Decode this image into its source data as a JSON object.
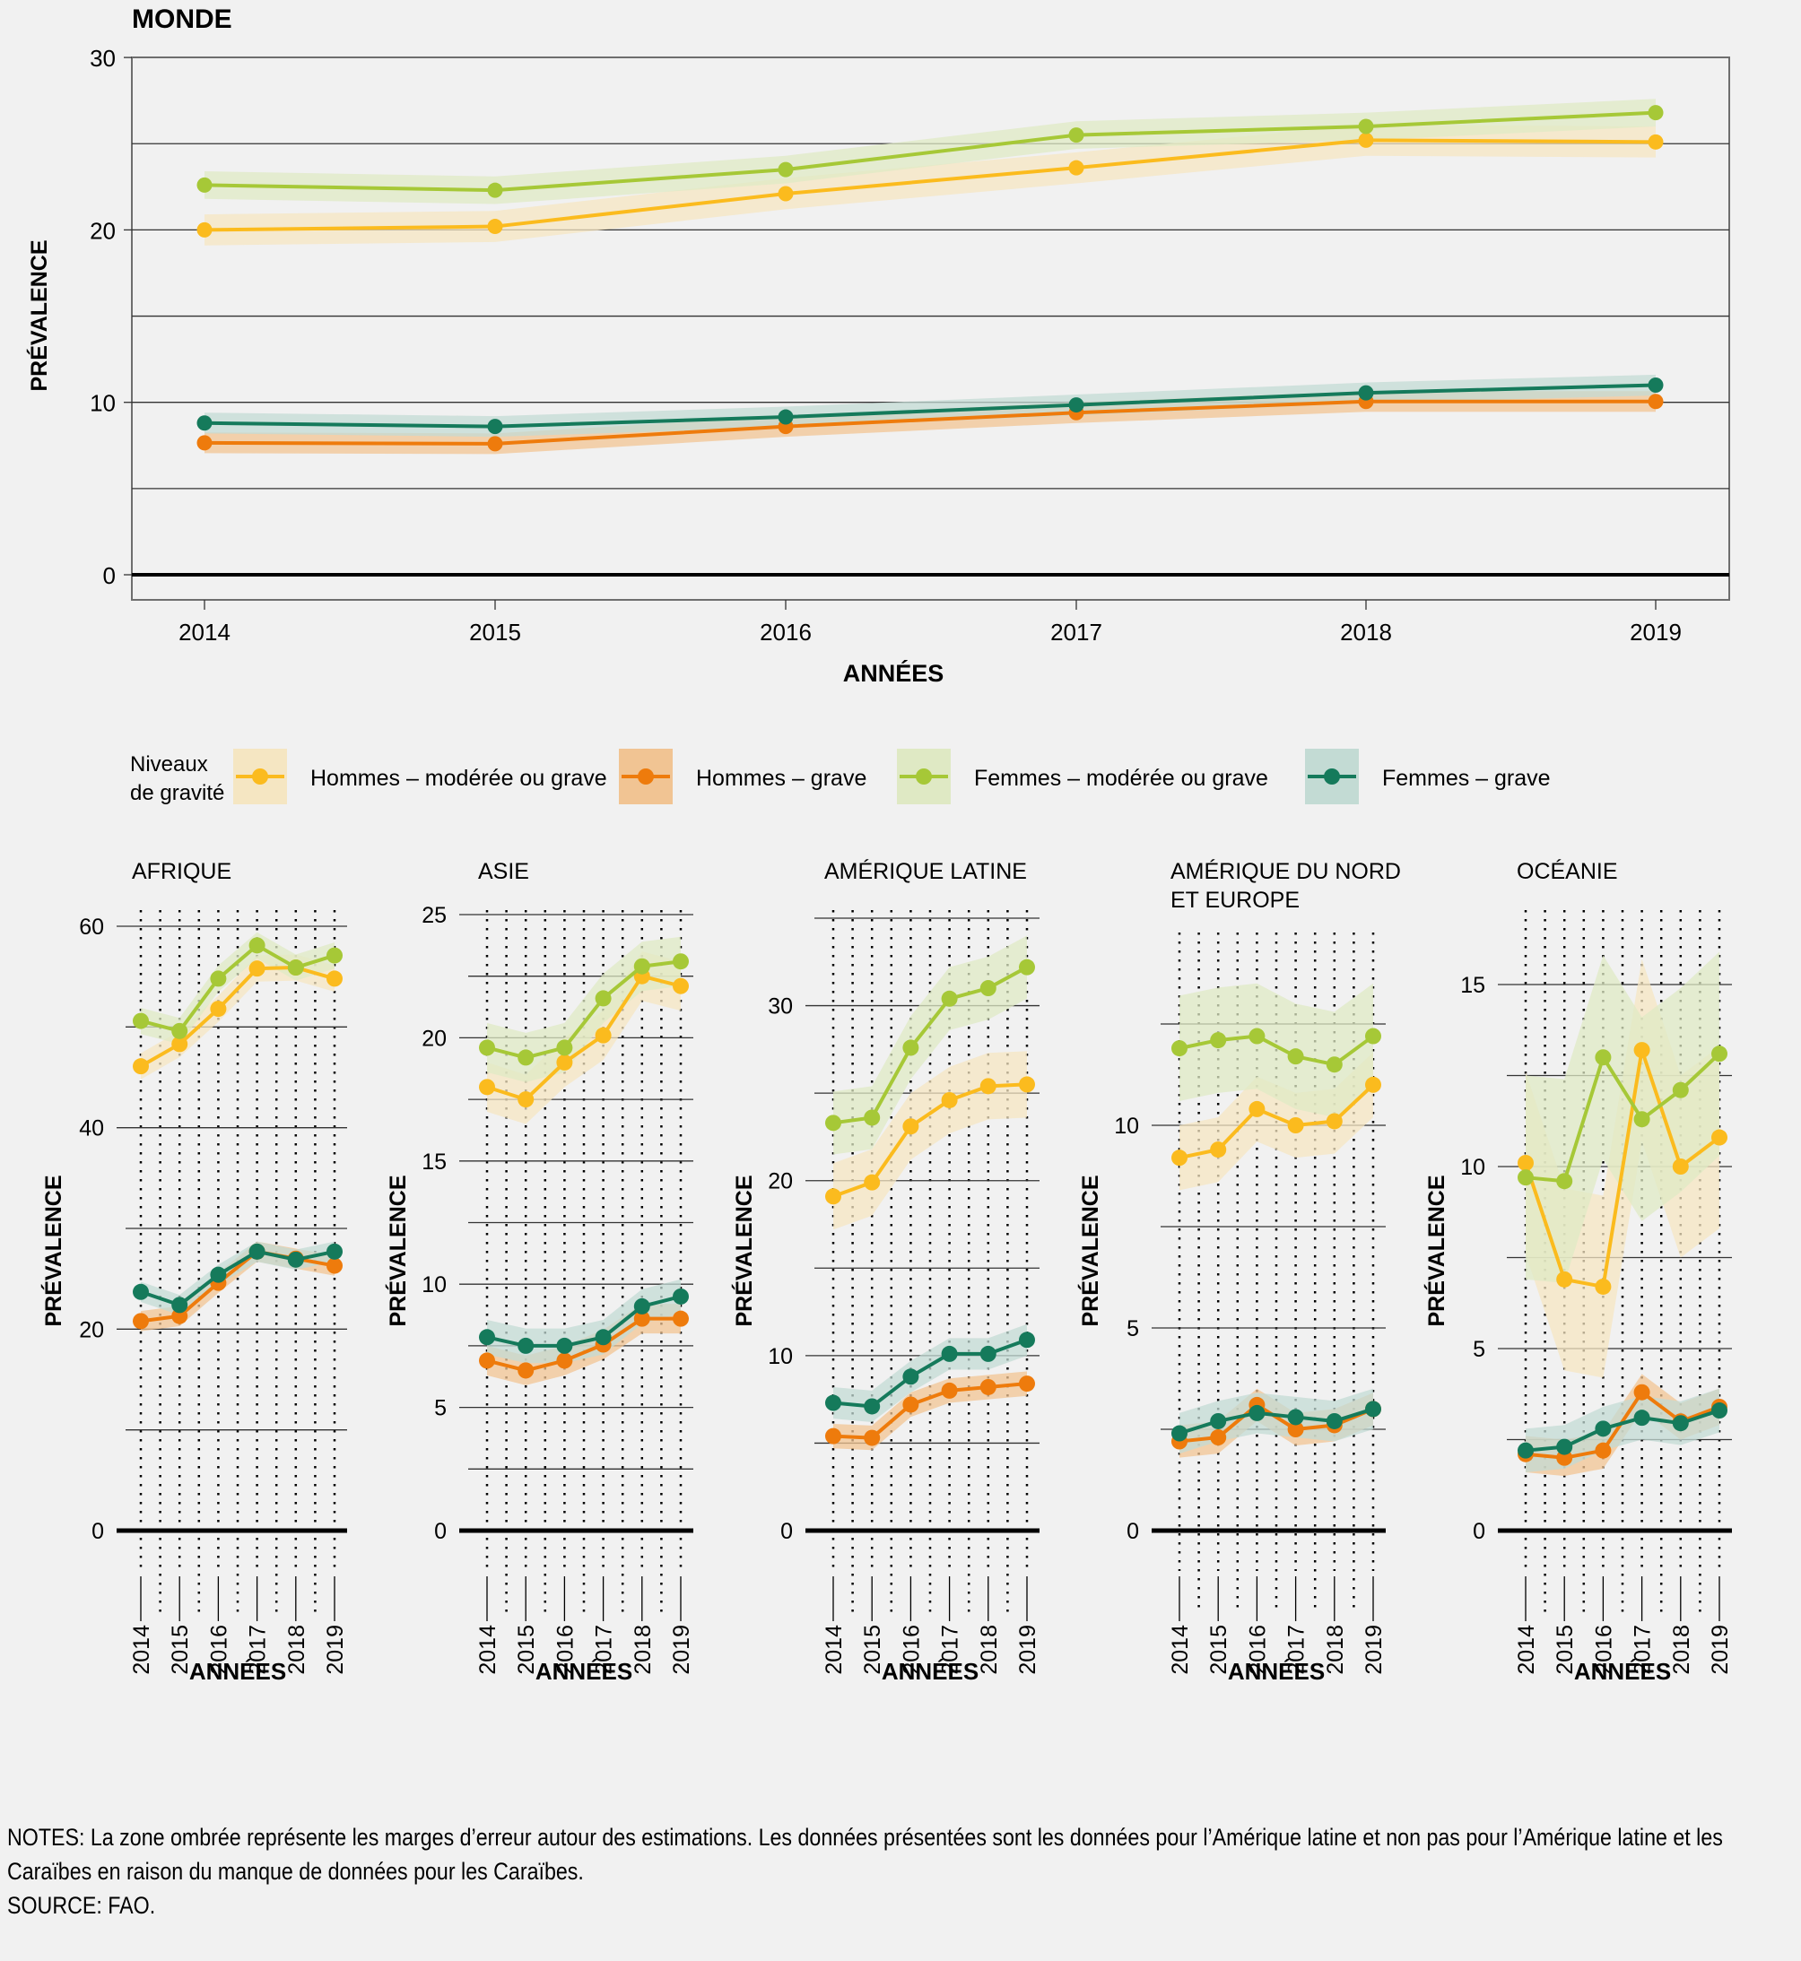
{
  "chart_data": [
    {
      "id": "world",
      "type": "line",
      "title": "MONDE",
      "xlabel": "ANNÉES",
      "ylabel": "PRÉVALENCE",
      "x": [
        2014,
        2015,
        2016,
        2017,
        2018,
        2019
      ],
      "ylim": [
        0,
        30
      ],
      "yticks": [
        0,
        10,
        20,
        30
      ],
      "ygrid": [
        5,
        10,
        15,
        20,
        25
      ],
      "grid": true,
      "series": [
        {
          "key": "f_mod",
          "name": "Femmes – modérée ou grave",
          "values": [
            22.6,
            22.3,
            23.5,
            25.5,
            26.0,
            26.8
          ],
          "err": 0.8
        },
        {
          "key": "h_mod",
          "name": "Hommes – modérée ou grave",
          "values": [
            20.0,
            20.2,
            22.1,
            23.6,
            25.2,
            25.1
          ],
          "err": 0.9
        },
        {
          "key": "f_grave",
          "name": "Femmes – grave",
          "values": [
            8.8,
            8.6,
            9.15,
            9.85,
            10.55,
            11.0
          ],
          "err": 0.6
        },
        {
          "key": "h_grave",
          "name": "Hommes – grave",
          "values": [
            7.65,
            7.6,
            8.6,
            9.4,
            10.05,
            10.05
          ],
          "err": 0.6
        }
      ]
    },
    {
      "id": "afrique",
      "type": "line",
      "title": "AFRIQUE",
      "title_line2": "",
      "xlabel": "ANNÉES",
      "ylabel": "PRÉVALENCE",
      "x": [
        2014,
        2015,
        2016,
        2017,
        2018,
        2019
      ],
      "ylim": [
        0,
        60
      ],
      "yticks": [
        0,
        20,
        40,
        60
      ],
      "ygrid": [
        10,
        20,
        30,
        40,
        50,
        60
      ],
      "series": [
        {
          "key": "f_mod",
          "values": [
            50.6,
            49.6,
            54.8,
            58.1,
            55.9,
            57.1
          ],
          "err": 1.3
        },
        {
          "key": "h_mod",
          "values": [
            46.1,
            48.3,
            51.8,
            55.8,
            55.9,
            54.8
          ],
          "err": 1.3
        },
        {
          "key": "f_grave",
          "values": [
            23.7,
            22.4,
            25.4,
            27.7,
            26.9,
            27.7
          ],
          "err": 1.0
        },
        {
          "key": "h_grave",
          "values": [
            20.8,
            21.3,
            24.6,
            27.7,
            27.0,
            26.3
          ],
          "err": 1.0
        }
      ]
    },
    {
      "id": "asie",
      "type": "line",
      "title": "ASIE",
      "title_line2": "",
      "xlabel": "ANNÉES",
      "ylabel": "PRÉVALENCE",
      "x": [
        2014,
        2015,
        2016,
        2017,
        2018,
        2019
      ],
      "ylim": [
        0,
        25
      ],
      "yticks": [
        0,
        5,
        10,
        15,
        20,
        25
      ],
      "ygrid": [
        2.5,
        5,
        7.5,
        10,
        12.5,
        15,
        17.5,
        20,
        22.5,
        25
      ],
      "series": [
        {
          "key": "f_mod",
          "values": [
            19.6,
            19.2,
            19.6,
            21.6,
            22.9,
            23.1
          ],
          "err": 1.0
        },
        {
          "key": "h_mod",
          "values": [
            18.0,
            17.5,
            19.0,
            20.1,
            22.5,
            22.1
          ],
          "err": 1.0
        },
        {
          "key": "f_grave",
          "values": [
            7.85,
            7.5,
            7.5,
            7.85,
            9.1,
            9.5
          ],
          "err": 0.7
        },
        {
          "key": "h_grave",
          "values": [
            6.9,
            6.5,
            6.9,
            7.55,
            8.6,
            8.6
          ],
          "err": 0.6
        }
      ]
    },
    {
      "id": "amerique-latine",
      "type": "line",
      "title": "AMÉRIQUE LATINE",
      "title_line2": "",
      "xlabel": "ANNÉES",
      "ylabel": "PRÉVALENCE",
      "x": [
        2014,
        2015,
        2016,
        2017,
        2018,
        2019
      ],
      "ylim": [
        0,
        35
      ],
      "yticks": [
        0,
        10,
        20,
        30
      ],
      "ygrid": [
        5,
        10,
        15,
        20,
        25,
        30,
        35
      ],
      "series": [
        {
          "key": "f_mod",
          "values": [
            23.3,
            23.6,
            27.6,
            30.4,
            31.0,
            32.2
          ],
          "err": 1.8
        },
        {
          "key": "h_mod",
          "values": [
            19.1,
            19.9,
            23.1,
            24.6,
            25.4,
            25.5
          ],
          "err": 1.9
        },
        {
          "key": "f_grave",
          "values": [
            7.3,
            7.1,
            8.8,
            10.1,
            10.1,
            10.9
          ],
          "err": 0.9
        },
        {
          "key": "h_grave",
          "values": [
            5.4,
            5.3,
            7.2,
            8.0,
            8.2,
            8.4
          ],
          "err": 0.7
        }
      ]
    },
    {
      "id": "amerique-nord-europe",
      "type": "line",
      "title": "AMÉRIQUE DU NORD",
      "title_line2": "ET EUROPE",
      "xlabel": "ANNÉES",
      "ylabel": "PRÉVALENCE",
      "x": [
        2014,
        2015,
        2016,
        2017,
        2018,
        2019
      ],
      "ylim": [
        0,
        12.5
      ],
      "yticks": [
        0,
        5,
        10
      ],
      "ygrid": [
        2.5,
        5,
        7.5,
        10,
        12.5
      ],
      "series": [
        {
          "key": "f_mod",
          "values": [
            11.9,
            12.1,
            12.2,
            11.7,
            11.5,
            12.2
          ],
          "err": 1.3
        },
        {
          "key": "h_mod",
          "values": [
            9.2,
            9.4,
            10.4,
            10.0,
            10.1,
            11.0
          ],
          "err": 0.8
        },
        {
          "key": "f_grave",
          "values": [
            2.4,
            2.7,
            2.9,
            2.8,
            2.7,
            3.0
          ],
          "err": 0.5
        },
        {
          "key": "h_grave",
          "values": [
            2.2,
            2.3,
            3.1,
            2.5,
            2.6,
            3.0
          ],
          "err": 0.4
        }
      ]
    },
    {
      "id": "oceanie",
      "type": "line",
      "title": "OCÉANIE",
      "title_line2": "",
      "xlabel": "ANNÉES",
      "ylabel": "PRÉVALENCE",
      "x": [
        2014,
        2015,
        2016,
        2017,
        2018,
        2019
      ],
      "ylim": [
        0,
        15
      ],
      "yticks": [
        0,
        5,
        10,
        15
      ],
      "ygrid": [
        2.5,
        5,
        7.5,
        10,
        12.5,
        15
      ],
      "series": [
        {
          "key": "f_mod",
          "values": [
            9.7,
            9.6,
            13.0,
            11.3,
            12.1,
            13.1
          ],
          "err": 2.8
        },
        {
          "key": "h_mod",
          "values": [
            10.1,
            6.9,
            6.7,
            13.2,
            10.0,
            10.8
          ],
          "err": 2.5
        },
        {
          "key": "f_grave",
          "values": [
            2.2,
            2.3,
            2.8,
            3.1,
            2.95,
            3.3
          ],
          "err": 0.6
        },
        {
          "key": "h_grave",
          "values": [
            2.1,
            2.0,
            2.2,
            3.8,
            3.0,
            3.4
          ],
          "err": 0.5
        }
      ]
    }
  ],
  "colors": {
    "h_mod": "#fbbb1e",
    "h_mod_band": "#f5e6c2",
    "h_grave": "#ee7b0c",
    "h_grave_band": "#f1c493",
    "f_mod": "#a6c837",
    "f_mod_band": "#dfe9c4",
    "f_grave": "#157a5b",
    "f_grave_band": "#c3dbd4"
  },
  "legend": {
    "title_line1": "Niveaux",
    "title_line2": "de gravité",
    "items": [
      {
        "key": "h_mod",
        "label": "Hommes – modérée ou grave"
      },
      {
        "key": "h_grave",
        "label": "Hommes – grave"
      },
      {
        "key": "f_mod",
        "label": "Femmes – modérée ou grave"
      },
      {
        "key": "f_grave",
        "label": "Femmes – grave"
      }
    ]
  },
  "notes": {
    "line1": "NOTES: La zone ombrée représente les marges d’erreur autour des estimations. Les données présentées sont les données pour l’Amérique latine et non pas pour l’Amérique latine et les",
    "line2": "Caraïbes en raison du manque de données pour les Caraïbes.",
    "source": "SOURCE: FAO."
  }
}
